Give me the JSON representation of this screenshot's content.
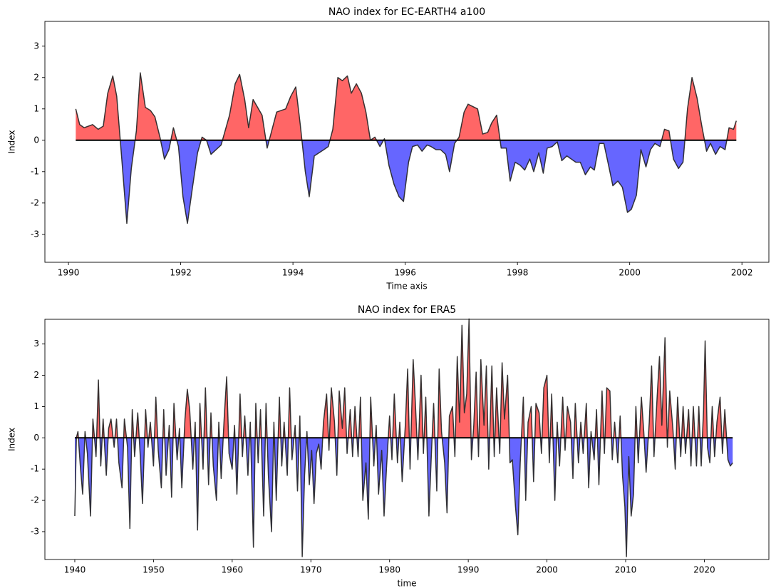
{
  "chart_data": [
    {
      "type": "area",
      "title": "NAO index for EC-EARTH4 a100",
      "xlabel": "Time axis",
      "ylabel": "Index",
      "positive_color": "#ff6666",
      "negative_color": "#6666ff",
      "line_color": "#222222",
      "xlim": [
        1989.58,
        2002.48
      ],
      "ylim": [
        -3.89,
        3.79
      ],
      "xticks": [
        1990,
        1992,
        1994,
        1996,
        1998,
        2000,
        2002
      ],
      "yticks": [
        -3,
        -2,
        -1,
        0,
        1,
        2,
        3
      ],
      "x": [
        1990.13,
        1990.2,
        1990.28,
        1990.43,
        1990.53,
        1990.62,
        1990.7,
        1990.79,
        1990.86,
        1990.95,
        1991.04,
        1991.12,
        1991.21,
        1991.28,
        1991.37,
        1991.46,
        1991.54,
        1991.63,
        1991.71,
        1991.79,
        1991.87,
        1991.96,
        1992.04,
        1992.12,
        1992.21,
        1992.3,
        1992.38,
        1992.46,
        1992.54,
        1992.72,
        1992.87,
        1992.97,
        1993.05,
        1993.14,
        1993.21,
        1993.29,
        1993.45,
        1993.54,
        1993.71,
        1993.87,
        1993.96,
        1994.05,
        1994.13,
        1994.22,
        1994.29,
        1994.38,
        1994.55,
        1994.63,
        1994.71,
        1994.8,
        1994.88,
        1994.97,
        1995.04,
        1995.13,
        1995.22,
        1995.3,
        1995.38,
        1995.46,
        1995.55,
        1995.63,
        1995.71,
        1995.8,
        1995.89,
        1995.97,
        1996.06,
        1996.13,
        1996.22,
        1996.3,
        1996.39,
        1996.46,
        1996.55,
        1996.63,
        1996.72,
        1996.79,
        1996.88,
        1996.96,
        1997.05,
        1997.12,
        1997.29,
        1997.38,
        1997.47,
        1997.54,
        1997.63,
        1997.71,
        1997.8,
        1997.87,
        1997.96,
        1998.05,
        1998.13,
        1998.22,
        1998.29,
        1998.38,
        1998.46,
        1998.53,
        1998.62,
        1998.71,
        1998.79,
        1998.88,
        1999.04,
        1999.12,
        1999.21,
        1999.3,
        1999.37,
        1999.46,
        1999.54,
        1999.63,
        1999.7,
        1999.79,
        1999.87,
        1999.96,
        2000.03,
        2000.12,
        2000.2,
        2000.29,
        2000.37,
        2000.45,
        2000.54,
        2000.62,
        2000.7,
        2000.78,
        2000.87,
        2000.95,
        2001.03,
        2001.11,
        2001.2,
        2001.28,
        2001.37,
        2001.44,
        2001.53,
        2001.61,
        2001.7,
        2001.77,
        2001.85,
        2001.9
      ],
      "values": [
        1.0,
        0.5,
        0.4,
        0.5,
        0.35,
        0.45,
        1.5,
        2.05,
        1.4,
        -0.6,
        -2.65,
        -0.9,
        0.3,
        2.15,
        1.05,
        0.95,
        0.75,
        0.1,
        -0.6,
        -0.3,
        0.4,
        -0.2,
        -1.8,
        -2.65,
        -1.5,
        -0.4,
        0.1,
        0.0,
        -0.45,
        -0.15,
        0.8,
        1.8,
        2.1,
        1.3,
        0.4,
        1.3,
        0.8,
        -0.25,
        0.9,
        1.0,
        1.4,
        1.7,
        0.5,
        -1.0,
        -1.8,
        -0.5,
        -0.3,
        -0.2,
        0.35,
        2.0,
        1.9,
        2.05,
        1.5,
        1.8,
        1.5,
        0.9,
        0.0,
        0.1,
        -0.2,
        0.05,
        -0.8,
        -1.4,
        -1.8,
        -1.95,
        -0.7,
        -0.2,
        -0.15,
        -0.35,
        -0.15,
        -0.2,
        -0.3,
        -0.3,
        -0.45,
        -1.0,
        -0.1,
        0.1,
        0.9,
        1.15,
        1.0,
        0.2,
        0.25,
        0.55,
        0.8,
        -0.25,
        -0.25,
        -1.3,
        -0.7,
        -0.8,
        -0.95,
        -0.6,
        -1.0,
        -0.4,
        -1.05,
        -0.25,
        -0.2,
        -0.05,
        -0.65,
        -0.5,
        -0.7,
        -0.7,
        -1.1,
        -0.85,
        -0.95,
        -0.1,
        -0.1,
        -0.85,
        -1.45,
        -1.3,
        -1.5,
        -2.3,
        -2.2,
        -1.75,
        -0.3,
        -0.85,
        -0.3,
        -0.1,
        -0.2,
        0.35,
        0.3,
        -0.6,
        -0.9,
        -0.7,
        1.0,
        2.0,
        1.35,
        0.5,
        -0.35,
        -0.1,
        -0.45,
        -0.2,
        -0.3,
        0.4,
        0.35,
        0.62
      ]
    },
    {
      "type": "area",
      "title": "NAO index for ERA5",
      "xlabel": "time",
      "ylabel": "Index",
      "positive_color": "#ff6666",
      "negative_color": "#6666ff",
      "line_color": "#222222",
      "xlim": [
        1936.2,
        2028.2
      ],
      "ylim": [
        -3.89,
        3.79
      ],
      "xticks": [
        1940,
        1950,
        1960,
        1970,
        1980,
        1990,
        2000,
        2010,
        2020
      ],
      "yticks": [
        -3,
        -2,
        -1,
        0,
        1,
        2,
        3
      ],
      "x": [
        1940.0,
        1940.2,
        1940.4,
        1940.7,
        1941.0,
        1941.3,
        1941.6,
        1942.0,
        1942.3,
        1942.7,
        1943.0,
        1943.3,
        1943.6,
        1944.0,
        1944.3,
        1944.6,
        1945.0,
        1945.3,
        1945.6,
        1946.0,
        1946.3,
        1946.7,
        1947.0,
        1947.3,
        1947.6,
        1948.0,
        1948.3,
        1948.6,
        1949.0,
        1949.3,
        1949.6,
        1950.0,
        1950.3,
        1950.6,
        1951.0,
        1951.3,
        1951.6,
        1952.0,
        1952.3,
        1952.6,
        1953.0,
        1953.3,
        1953.6,
        1954.0,
        1954.3,
        1954.6,
        1955.0,
        1955.3,
        1955.6,
        1955.9,
        1956.3,
        1956.6,
        1957.0,
        1957.3,
        1957.6,
        1958.0,
        1958.3,
        1958.6,
        1959.0,
        1959.3,
        1959.6,
        1960.0,
        1960.3,
        1960.6,
        1961.0,
        1961.3,
        1961.6,
        1962.0,
        1962.3,
        1962.7,
        1963.0,
        1963.3,
        1963.6,
        1964.0,
        1964.3,
        1964.6,
        1965.0,
        1965.3,
        1965.6,
        1966.0,
        1966.3,
        1966.6,
        1967.0,
        1967.3,
        1967.6,
        1968.0,
        1968.3,
        1968.6,
        1968.9,
        1969.2,
        1969.5,
        1969.8,
        1970.1,
        1970.4,
        1970.7,
        1971.0,
        1971.3,
        1971.6,
        1972.0,
        1972.3,
        1972.6,
        1973.0,
        1973.3,
        1973.6,
        1974.0,
        1974.3,
        1974.6,
        1975.0,
        1975.3,
        1975.6,
        1976.0,
        1976.3,
        1976.6,
        1977.0,
        1977.3,
        1977.6,
        1978.0,
        1978.3,
        1978.6,
        1979.0,
        1979.3,
        1979.6,
        1980.0,
        1980.3,
        1980.6,
        1981.0,
        1981.3,
        1981.6,
        1982.0,
        1982.3,
        1982.6,
        1983.0,
        1983.3,
        1983.6,
        1984.0,
        1984.3,
        1984.6,
        1985.0,
        1985.3,
        1985.6,
        1986.0,
        1986.3,
        1986.6,
        1987.0,
        1987.3,
        1987.6,
        1988.0,
        1988.3,
        1988.6,
        1988.9,
        1989.2,
        1989.5,
        1989.8,
        1990.1,
        1990.4,
        1990.7,
        1991.0,
        1991.3,
        1991.6,
        1992.0,
        1992.3,
        1992.6,
        1993.0,
        1993.3,
        1993.6,
        1994.0,
        1994.3,
        1994.6,
        1995.0,
        1995.3,
        1995.6,
        1996.0,
        1996.3,
        1996.6,
        1997.0,
        1997.3,
        1997.6,
        1998.0,
        1998.3,
        1998.6,
        1999.0,
        1999.3,
        1999.6,
        2000.0,
        2000.3,
        2000.6,
        2001.0,
        2001.3,
        2001.6,
        2002.0,
        2002.3,
        2002.6,
        2003.0,
        2003.3,
        2003.6,
        2004.0,
        2004.3,
        2004.6,
        2005.0,
        2005.3,
        2005.6,
        2006.0,
        2006.3,
        2006.6,
        2007.0,
        2007.3,
        2007.6,
        2008.0,
        2008.3,
        2008.6,
        2009.0,
        2009.3,
        2009.6,
        2009.9,
        2010.1,
        2010.4,
        2010.7,
        2011.0,
        2011.3,
        2011.6,
        2012.0,
        2012.3,
        2012.6,
        2013.0,
        2013.3,
        2013.6,
        2014.0,
        2014.3,
        2014.6,
        2015.0,
        2015.3,
        2015.6,
        2016.0,
        2016.3,
        2016.6,
        2017.0,
        2017.3,
        2017.6,
        2018.0,
        2018.3,
        2018.6,
        2019.0,
        2019.3,
        2019.6,
        2019.9,
        2020.1,
        2020.4,
        2020.7,
        2021.0,
        2021.3,
        2021.6,
        2022.0,
        2022.3,
        2022.6,
        2023.0,
        2023.3,
        2023.6
      ],
      "values": [
        -2.5,
        0.0,
        0.2,
        -0.9,
        -1.8,
        0.2,
        -0.5,
        -2.5,
        0.6,
        -0.6,
        1.85,
        -0.9,
        0.6,
        -1.2,
        0.3,
        0.6,
        -0.3,
        0.6,
        -0.8,
        -1.6,
        0.6,
        -0.3,
        -2.9,
        0.9,
        -0.6,
        0.8,
        -0.5,
        -2.1,
        0.9,
        -0.3,
        0.5,
        -0.9,
        1.3,
        -0.4,
        -1.6,
        0.9,
        -1.2,
        0.4,
        -1.9,
        1.1,
        -0.7,
        0.3,
        -1.6,
        0.6,
        1.55,
        0.9,
        -1.0,
        0.5,
        -2.95,
        1.1,
        -1.0,
        1.6,
        -1.5,
        0.8,
        -0.9,
        -2.0,
        0.5,
        -1.3,
        0.7,
        1.95,
        -0.5,
        -1.0,
        0.4,
        -1.8,
        1.4,
        -0.6,
        0.7,
        -1.2,
        0.5,
        -3.5,
        1.1,
        -0.8,
        0.9,
        -2.5,
        1.1,
        -1.2,
        -3.0,
        0.5,
        -2.0,
        1.3,
        -0.9,
        0.5,
        -1.2,
        1.6,
        -0.7,
        0.4,
        -1.7,
        0.7,
        -3.8,
        -1.2,
        0.2,
        -1.5,
        -0.4,
        -2.1,
        -0.5,
        -0.2,
        -1.0,
        0.5,
        1.4,
        -0.4,
        1.6,
        0.5,
        -1.2,
        1.5,
        0.3,
        1.6,
        -0.5,
        0.9,
        -0.6,
        1.0,
        -0.6,
        1.3,
        -2.0,
        -0.8,
        -2.6,
        1.3,
        -0.9,
        0.4,
        -1.8,
        -0.4,
        -2.5,
        -1.0,
        0.7,
        -0.7,
        1.4,
        -0.8,
        0.5,
        -1.4,
        0.4,
        2.2,
        -1.0,
        2.5,
        1.0,
        -0.7,
        2.0,
        -0.5,
        1.3,
        -2.5,
        -0.6,
        1.1,
        -1.7,
        2.2,
        0.2,
        -0.8,
        -2.4,
        0.7,
        1.0,
        -0.6,
        2.6,
        0.5,
        3.6,
        0.8,
        1.4,
        3.8,
        -0.7,
        0.4,
        2.1,
        -0.6,
        2.5,
        0.4,
        2.3,
        -1.0,
        2.3,
        -0.6,
        1.6,
        -0.5,
        2.4,
        0.6,
        2.0,
        -0.8,
        -0.7,
        -2.2,
        -3.1,
        -0.8,
        1.3,
        -2.0,
        0.5,
        1.0,
        -1.4,
        1.1,
        0.8,
        -0.5,
        1.6,
        2.0,
        -0.8,
        1.4,
        -2.0,
        0.5,
        -0.9,
        1.3,
        -0.4,
        1.0,
        0.5,
        -1.3,
        1.1,
        -0.8,
        0.5,
        -0.5,
        1.1,
        -1.6,
        0.2,
        -0.7,
        0.9,
        -1.5,
        1.5,
        -0.5,
        1.6,
        1.5,
        -0.7,
        0.5,
        -0.8,
        0.7,
        -1.2,
        -2.2,
        -3.8,
        -0.6,
        -2.5,
        -1.8,
        1.0,
        -0.8,
        1.3,
        0.2,
        -1.1,
        0.5,
        2.3,
        -0.6,
        1.3,
        2.6,
        0.4,
        3.2,
        -0.3,
        1.5,
        0.3,
        -1.0,
        1.3,
        -0.6,
        1.0,
        -0.5,
        0.9,
        -0.9,
        1.0,
        -0.9,
        1.0,
        -0.9,
        0.9,
        3.1,
        -0.3,
        -0.8,
        1.0,
        -0.6,
        0.5,
        1.3,
        -0.5,
        0.9,
        -0.7,
        -0.9,
        -0.8
      ]
    }
  ]
}
